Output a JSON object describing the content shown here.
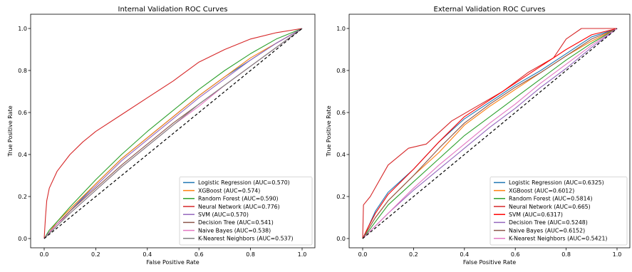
{
  "chart_data": [
    {
      "type": "line",
      "title": "Internal Validation ROC Curves",
      "xlabel": "False Positive Rate",
      "ylabel": "True Positive Rate",
      "xlim": [
        0,
        1
      ],
      "ylim": [
        0,
        1
      ],
      "x_ticks": [
        "0.0",
        "0.2",
        "0.4",
        "0.6",
        "0.8",
        "1.0"
      ],
      "y_ticks": [
        "0.0",
        "0.2",
        "0.4",
        "0.6",
        "0.8",
        "1.0"
      ],
      "grid": false,
      "legend_position": "lower-right",
      "diagonal": {
        "style": "dashed",
        "color": "#000000",
        "points": [
          [
            0,
            0
          ],
          [
            1,
            1
          ]
        ]
      },
      "series": [
        {
          "name": "Logistic Regression (AUC=0.570)",
          "color": "#1f77b4",
          "points": [
            [
              0,
              0
            ],
            [
              0.02,
              0.03
            ],
            [
              0.05,
              0.07
            ],
            [
              0.1,
              0.13
            ],
            [
              0.2,
              0.26
            ],
            [
              0.3,
              0.38
            ],
            [
              0.4,
              0.48
            ],
            [
              0.5,
              0.58
            ],
            [
              0.6,
              0.68
            ],
            [
              0.7,
              0.77
            ],
            [
              0.8,
              0.85
            ],
            [
              0.9,
              0.93
            ],
            [
              1,
              1
            ]
          ]
        },
        {
          "name": "XGBoost (AUC=0.574)",
          "color": "#ff7f0e",
          "points": [
            [
              0,
              0
            ],
            [
              0.02,
              0.03
            ],
            [
              0.05,
              0.08
            ],
            [
              0.1,
              0.14
            ],
            [
              0.2,
              0.26
            ],
            [
              0.3,
              0.38
            ],
            [
              0.4,
              0.48
            ],
            [
              0.5,
              0.58
            ],
            [
              0.6,
              0.68
            ],
            [
              0.7,
              0.77
            ],
            [
              0.8,
              0.86
            ],
            [
              0.9,
              0.93
            ],
            [
              1,
              1
            ]
          ]
        },
        {
          "name": "Random Forest (AUC=0.590)",
          "color": "#2ca02c",
          "points": [
            [
              0,
              0
            ],
            [
              0.02,
              0.04
            ],
            [
              0.05,
              0.08
            ],
            [
              0.1,
              0.15
            ],
            [
              0.2,
              0.28
            ],
            [
              0.3,
              0.4
            ],
            [
              0.4,
              0.51
            ],
            [
              0.5,
              0.61
            ],
            [
              0.6,
              0.71
            ],
            [
              0.7,
              0.8
            ],
            [
              0.8,
              0.88
            ],
            [
              0.9,
              0.95
            ],
            [
              1,
              1
            ]
          ]
        },
        {
          "name": "Neural Network (AUC=0.776)",
          "color": "#d62728",
          "points": [
            [
              0,
              0
            ],
            [
              0.005,
              0.1
            ],
            [
              0.01,
              0.18
            ],
            [
              0.02,
              0.24
            ],
            [
              0.05,
              0.32
            ],
            [
              0.1,
              0.4
            ],
            [
              0.15,
              0.46
            ],
            [
              0.2,
              0.51
            ],
            [
              0.3,
              0.59
            ],
            [
              0.4,
              0.67
            ],
            [
              0.5,
              0.75
            ],
            [
              0.6,
              0.84
            ],
            [
              0.7,
              0.9
            ],
            [
              0.8,
              0.95
            ],
            [
              0.9,
              0.98
            ],
            [
              1,
              1
            ]
          ]
        },
        {
          "name": "SVM (AUC=0.570)",
          "color": "#9467bd",
          "points": [
            [
              0,
              0
            ],
            [
              0.02,
              0.03
            ],
            [
              0.05,
              0.07
            ],
            [
              0.1,
              0.13
            ],
            [
              0.2,
              0.25
            ],
            [
              0.3,
              0.37
            ],
            [
              0.4,
              0.47
            ],
            [
              0.5,
              0.57
            ],
            [
              0.6,
              0.67
            ],
            [
              0.7,
              0.76
            ],
            [
              0.8,
              0.85
            ],
            [
              0.9,
              0.93
            ],
            [
              1,
              1
            ]
          ]
        },
        {
          "name": "Decision Tree (AUC=0.541)",
          "color": "#8c564b",
          "points": [
            [
              0,
              0
            ],
            [
              0.05,
              0.07
            ],
            [
              0.1,
              0.13
            ],
            [
              0.2,
              0.24
            ],
            [
              0.3,
              0.35
            ],
            [
              0.4,
              0.45
            ],
            [
              0.5,
              0.55
            ],
            [
              0.6,
              0.64
            ],
            [
              0.7,
              0.73
            ],
            [
              0.8,
              0.82
            ],
            [
              0.9,
              0.91
            ],
            [
              1,
              1
            ]
          ]
        },
        {
          "name": "Naive Bayes (AUC=0.538)",
          "color": "#e377c2",
          "points": [
            [
              0,
              0
            ],
            [
              0.05,
              0.07
            ],
            [
              0.1,
              0.12
            ],
            [
              0.2,
              0.23
            ],
            [
              0.3,
              0.34
            ],
            [
              0.4,
              0.44
            ],
            [
              0.5,
              0.54
            ],
            [
              0.6,
              0.63
            ],
            [
              0.7,
              0.73
            ],
            [
              0.8,
              0.82
            ],
            [
              0.9,
              0.91
            ],
            [
              1,
              1
            ]
          ]
        },
        {
          "name": "K-Nearest Neighbors (AUC=0.537)",
          "color": "#7f7f7f",
          "points": [
            [
              0,
              0
            ],
            [
              0.05,
              0.06
            ],
            [
              0.1,
              0.12
            ],
            [
              0.2,
              0.23
            ],
            [
              0.3,
              0.34
            ],
            [
              0.4,
              0.44
            ],
            [
              0.5,
              0.54
            ],
            [
              0.6,
              0.64
            ],
            [
              0.7,
              0.73
            ],
            [
              0.8,
              0.82
            ],
            [
              0.9,
              0.91
            ],
            [
              1,
              1
            ]
          ]
        }
      ]
    },
    {
      "type": "line",
      "title": "External Validation ROC Curves",
      "xlabel": "False Positive Rate",
      "ylabel": "True Positive Rate",
      "xlim": [
        0,
        1
      ],
      "ylim": [
        0,
        1
      ],
      "x_ticks": [
        "0.0",
        "0.2",
        "0.4",
        "0.6",
        "0.8",
        "1.0"
      ],
      "y_ticks": [
        "0.0",
        "0.2",
        "0.4",
        "0.6",
        "0.8",
        "1.0"
      ],
      "grid": false,
      "legend_position": "lower-right",
      "diagonal": {
        "style": "dashed",
        "color": "#000000",
        "points": [
          [
            0,
            0
          ],
          [
            1,
            1
          ]
        ]
      },
      "series": [
        {
          "name": "Logistic Regression (AUC=0.6325)",
          "color": "#1f77b4",
          "points": [
            [
              0,
              0
            ],
            [
              0.02,
              0.05
            ],
            [
              0.05,
              0.13
            ],
            [
              0.1,
              0.22
            ],
            [
              0.2,
              0.33
            ],
            [
              0.3,
              0.46
            ],
            [
              0.4,
              0.57
            ],
            [
              0.5,
              0.65
            ],
            [
              0.6,
              0.73
            ],
            [
              0.7,
              0.8
            ],
            [
              0.8,
              0.88
            ],
            [
              0.9,
              0.96
            ],
            [
              1,
              1
            ]
          ]
        },
        {
          "name": "XGBoost (AUC=0.6012)",
          "color": "#ff7f0e",
          "points": [
            [
              0,
              0
            ],
            [
              0.02,
              0.04
            ],
            [
              0.05,
              0.1
            ],
            [
              0.1,
              0.18
            ],
            [
              0.2,
              0.3
            ],
            [
              0.3,
              0.41
            ],
            [
              0.4,
              0.54
            ],
            [
              0.5,
              0.63
            ],
            [
              0.6,
              0.71
            ],
            [
              0.7,
              0.79
            ],
            [
              0.8,
              0.87
            ],
            [
              0.9,
              0.94
            ],
            [
              1,
              1
            ]
          ]
        },
        {
          "name": "Random Forest (AUC=0.5814)",
          "color": "#2ca02c",
          "points": [
            [
              0,
              0
            ],
            [
              0.02,
              0.03
            ],
            [
              0.05,
              0.08
            ],
            [
              0.1,
              0.16
            ],
            [
              0.2,
              0.27
            ],
            [
              0.3,
              0.38
            ],
            [
              0.4,
              0.49
            ],
            [
              0.5,
              0.58
            ],
            [
              0.6,
              0.67
            ],
            [
              0.7,
              0.76
            ],
            [
              0.8,
              0.85
            ],
            [
              0.9,
              0.93
            ],
            [
              1,
              1
            ]
          ]
        },
        {
          "name": "Neural Network (AUC=0.665)",
          "color": "#d62728",
          "points": [
            [
              0,
              0
            ],
            [
              0.003,
              0.16
            ],
            [
              0.03,
              0.2
            ],
            [
              0.1,
              0.35
            ],
            [
              0.18,
              0.43
            ],
            [
              0.25,
              0.45
            ],
            [
              0.35,
              0.56
            ],
            [
              0.45,
              0.63
            ],
            [
              0.55,
              0.7
            ],
            [
              0.65,
              0.79
            ],
            [
              0.75,
              0.86
            ],
            [
              0.8,
              0.95
            ],
            [
              0.86,
              1
            ],
            [
              1,
              1
            ]
          ]
        },
        {
          "name": "SVM (AUC=0.6317)",
          "color": "#ff0000",
          "points": [
            [
              0,
              0
            ],
            [
              0.02,
              0.05
            ],
            [
              0.05,
              0.12
            ],
            [
              0.1,
              0.21
            ],
            [
              0.2,
              0.33
            ],
            [
              0.3,
              0.46
            ],
            [
              0.4,
              0.58
            ],
            [
              0.5,
              0.66
            ],
            [
              0.6,
              0.74
            ],
            [
              0.7,
              0.82
            ],
            [
              0.8,
              0.9
            ],
            [
              0.9,
              0.97
            ],
            [
              1,
              1
            ]
          ]
        },
        {
          "name": "Decision Tree (AUC=0.5248)",
          "color": "#9467bd",
          "points": [
            [
              0,
              0
            ],
            [
              0.1,
              0.12
            ],
            [
              0.2,
              0.23
            ],
            [
              0.3,
              0.33
            ],
            [
              0.4,
              0.43
            ],
            [
              0.5,
              0.53
            ],
            [
              0.6,
              0.62
            ],
            [
              0.7,
              0.72
            ],
            [
              0.8,
              0.81
            ],
            [
              0.9,
              0.91
            ],
            [
              1,
              1
            ]
          ]
        },
        {
          "name": "Naive Bayes (AUC=0.6152)",
          "color": "#8c564b",
          "points": [
            [
              0,
              0
            ],
            [
              0.02,
              0.04
            ],
            [
              0.05,
              0.1
            ],
            [
              0.1,
              0.18
            ],
            [
              0.2,
              0.3
            ],
            [
              0.3,
              0.43
            ],
            [
              0.4,
              0.55
            ],
            [
              0.5,
              0.64
            ],
            [
              0.6,
              0.72
            ],
            [
              0.7,
              0.79
            ],
            [
              0.8,
              0.87
            ],
            [
              0.9,
              0.95
            ],
            [
              1,
              1
            ]
          ]
        },
        {
          "name": "K-Nearest Neighbors (AUC=0.5421)",
          "color": "#e377c2",
          "points": [
            [
              0,
              0
            ],
            [
              0.1,
              0.12
            ],
            [
              0.2,
              0.24
            ],
            [
              0.3,
              0.35
            ],
            [
              0.4,
              0.45
            ],
            [
              0.5,
              0.55
            ],
            [
              0.6,
              0.64
            ],
            [
              0.7,
              0.74
            ],
            [
              0.8,
              0.83
            ],
            [
              0.9,
              0.92
            ],
            [
              1,
              1
            ]
          ]
        }
      ]
    }
  ]
}
